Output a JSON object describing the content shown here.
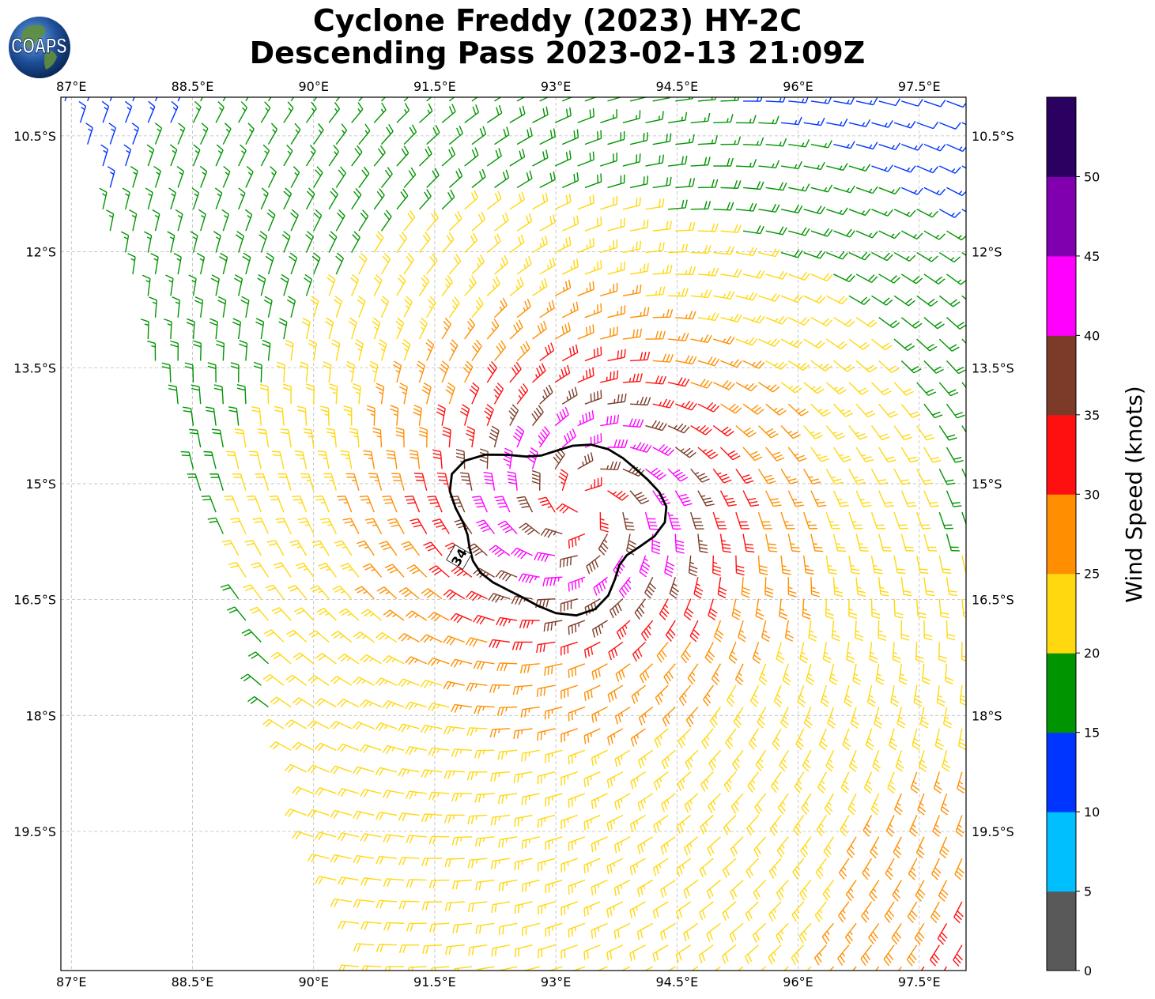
{
  "title": {
    "line1": "Cyclone Freddy (2023) HY-2C",
    "line2": "Descending Pass 2023-02-13 21:09Z"
  },
  "logo": {
    "text": "COAPS",
    "icon": "globe-icon"
  },
  "map": {
    "lon_range": [
      86.87,
      98.08
    ],
    "lat_range": [
      -21.3,
      -10.0
    ],
    "lon_ticks": [
      "87°E",
      "88.5°E",
      "90°E",
      "91.5°E",
      "93°E",
      "94.5°E",
      "96°E",
      "97.5°E"
    ],
    "lon_tick_values": [
      87,
      88.5,
      90,
      91.5,
      93,
      94.5,
      96,
      97.5
    ],
    "lat_ticks": [
      "10.5°S",
      "12°S",
      "13.5°S",
      "15°S",
      "16.5°S",
      "18°S",
      "19.5°S"
    ],
    "lat_tick_values": [
      -10.5,
      -12,
      -13.5,
      -15,
      -16.5,
      -18,
      -19.5
    ],
    "gridlines": "dashed",
    "storm_center": {
      "lon": 93.35,
      "lat": -15.3
    },
    "contour_label": "34",
    "contour_level_knots": 34
  },
  "colorbar": {
    "label": "Wind Speed (knots)",
    "ticks": [
      "0",
      "5",
      "10",
      "15",
      "20",
      "25",
      "30",
      "35",
      "40",
      "45",
      "50"
    ],
    "bins": [
      {
        "min": 0,
        "max": 5,
        "color": "#595959"
      },
      {
        "min": 5,
        "max": 10,
        "color": "#00bfff"
      },
      {
        "min": 10,
        "max": 15,
        "color": "#0035ff"
      },
      {
        "min": 15,
        "max": 20,
        "color": "#009500"
      },
      {
        "min": 20,
        "max": 25,
        "color": "#ffd80f"
      },
      {
        "min": 25,
        "max": 30,
        "color": "#ff8f00"
      },
      {
        "min": 30,
        "max": 35,
        "color": "#ff1010"
      },
      {
        "min": 35,
        "max": 40,
        "color": "#7c3b28"
      },
      {
        "min": 40,
        "max": 45,
        "color": "#ff00ff"
      },
      {
        "min": 45,
        "max": 50,
        "color": "#8000b0"
      },
      {
        "min": 50,
        "max": 55,
        "color": "#2a0060"
      }
    ]
  }
}
